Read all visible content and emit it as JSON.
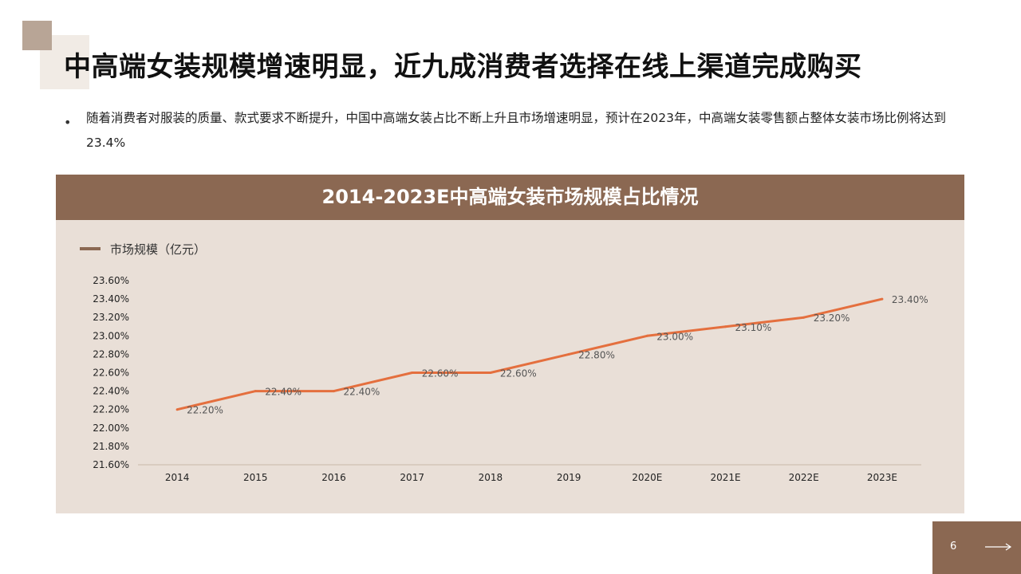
{
  "slide": {
    "title": "中高端女装规模增速明显，近九成消费者选择在线上渠道完成购买",
    "bullet": "随着消费者对服装的质量、款式要求不断提升，中国中高端女装占比不断上升且市场增速明显，预计在2023年，中高端女装零售额占整体女装市场比例将达到23.4%",
    "page_number": "6"
  },
  "colors": {
    "accent": "#8b6852",
    "line": "#e46f3e",
    "panel": "#e9dfd7"
  },
  "icons": {
    "next": "arrow-right-icon"
  },
  "chart_data": {
    "type": "line",
    "title": "2014-2023E中高端女装市场规模占比情况",
    "categories": [
      "2014",
      "2015",
      "2016",
      "2017",
      "2018",
      "2019",
      "2020E",
      "2021E",
      "2022E",
      "2023E"
    ],
    "series": [
      {
        "name": "市场规模（亿元）",
        "values": [
          22.2,
          22.4,
          22.4,
          22.6,
          22.6,
          22.8,
          23.0,
          23.1,
          23.2,
          23.4
        ],
        "labels": [
          "22.20%",
          "22.40%",
          "22.40%",
          "22.60%",
          "22.60%",
          "22.80%",
          "23.00%",
          "23.10%",
          "23.20%",
          "23.40%"
        ]
      }
    ],
    "ylim": [
      21.6,
      23.6
    ],
    "yticks": [
      "21.60%",
      "21.80%",
      "22.00%",
      "22.20%",
      "22.40%",
      "22.60%",
      "22.80%",
      "23.00%",
      "23.20%",
      "23.40%",
      "23.60%"
    ],
    "grid": false,
    "legend": "top-left"
  }
}
